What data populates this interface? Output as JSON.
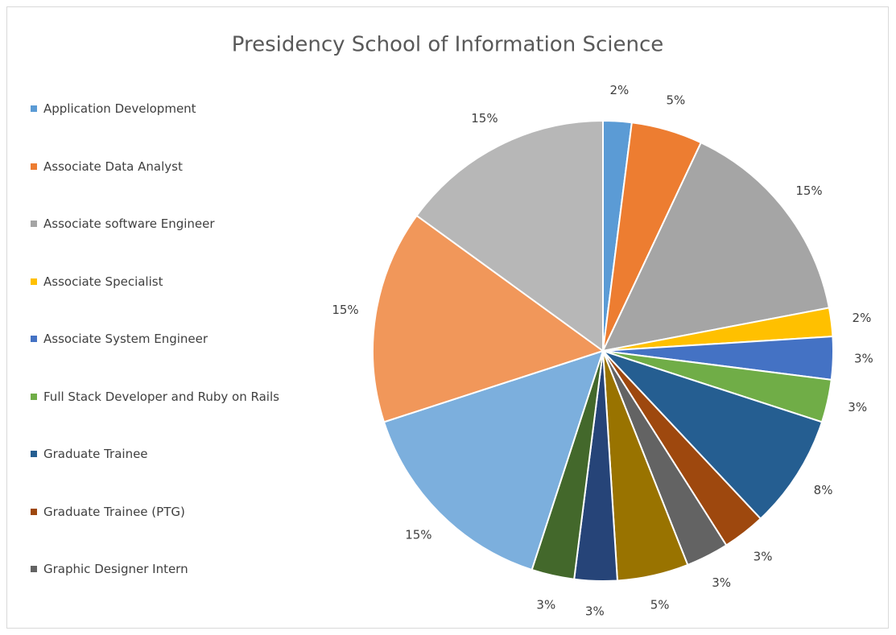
{
  "chart_data": {
    "type": "pie",
    "title": "Presidency School of Information Science",
    "categories": [
      "Application Development",
      "Associate Data Analyst",
      "Associate software Engineer",
      "Associate Specialist",
      "Associate System Engineer",
      "Full Stack Developer and Ruby on Rails",
      "Graduate Trainee",
      "Graduate Trainee (PTG)",
      "Graphic Designer Intern",
      null,
      null,
      null,
      null,
      null,
      null
    ],
    "values": [
      2,
      5,
      15,
      2,
      3,
      3,
      8,
      3,
      3,
      5,
      3,
      3,
      15,
      15,
      15
    ],
    "value_labels": [
      "2%",
      "5%",
      "15%",
      "2%",
      "3%",
      "3%",
      "8%",
      "3%",
      "3%",
      "5%",
      "3%",
      "3%",
      "15%",
      "15%",
      "15%"
    ],
    "colors": [
      "#5b9bd5",
      "#ed7d31",
      "#a5a5a5",
      "#ffc000",
      "#4472c4",
      "#70ad47",
      "#255e91",
      "#9e480e",
      "#636363",
      "#997300",
      "#264478",
      "#43682b",
      "#7cafdd",
      "#f1975a",
      "#b7b7b7"
    ],
    "legend": "left"
  }
}
